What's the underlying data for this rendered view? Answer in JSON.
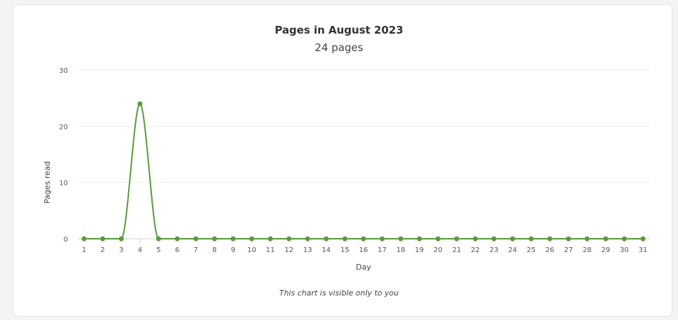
{
  "chart": {
    "title": "Pages in August 2023",
    "subtitle": "24 pages",
    "footnote": "This chart is visible only to you"
  },
  "colors": {
    "series": "#5b9a3a",
    "grid": "#eeeeee",
    "axis": "#cccccc"
  },
  "chart_data": {
    "type": "line",
    "title": "Pages in August 2023",
    "subtitle": "24 pages",
    "xlabel": "Day",
    "ylabel": "Pages read",
    "x": [
      1,
      2,
      3,
      4,
      5,
      6,
      7,
      8,
      9,
      10,
      11,
      12,
      13,
      14,
      15,
      16,
      17,
      18,
      19,
      20,
      21,
      22,
      23,
      24,
      25,
      26,
      27,
      28,
      29,
      30,
      31
    ],
    "values": [
      0,
      0,
      0,
      24,
      0,
      0,
      0,
      0,
      0,
      0,
      0,
      0,
      0,
      0,
      0,
      0,
      0,
      0,
      0,
      0,
      0,
      0,
      0,
      0,
      0,
      0,
      0,
      0,
      0,
      0,
      0
    ],
    "ylim": [
      0,
      30
    ],
    "yticks": [
      0,
      10,
      20,
      30
    ],
    "grid": true,
    "legend": false
  }
}
